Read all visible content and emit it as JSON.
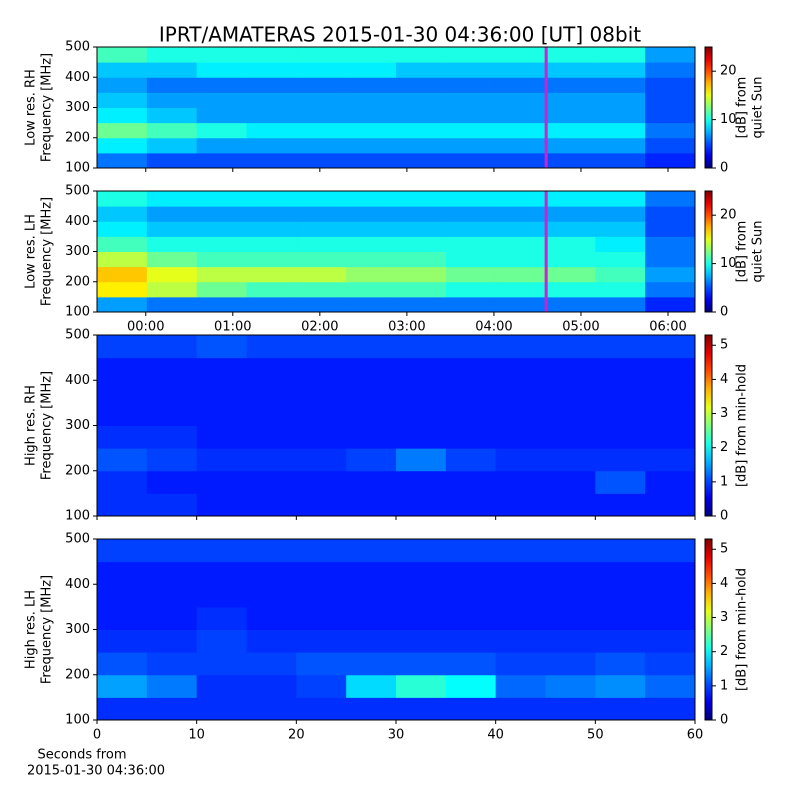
{
  "title": "IPRT/AMATERAS 2015-01-30 04:36:00 [UT]   08bit",
  "xlabel": [
    "Seconds from",
    "2015-01-30 04:36:00"
  ],
  "chart_data": [
    {
      "type": "spectrogram",
      "ylabel": [
        "Low res. RH",
        "Frequency [MHz]"
      ],
      "colorbar_label": [
        "[dB] from",
        "quiet Sun"
      ],
      "xlim": [
        -0.56,
        6.31
      ],
      "xticks": [
        {
          "value": 0,
          "label": "00:00"
        },
        {
          "value": 1,
          "label": "01:00"
        },
        {
          "value": 2,
          "label": "02:00"
        },
        {
          "value": 3,
          "label": "03:00"
        },
        {
          "value": 4,
          "label": "04:00"
        },
        {
          "value": 5,
          "label": "05:00"
        },
        {
          "value": 6,
          "label": "06:00"
        }
      ],
      "show_xticklabels": false,
      "ylim": [
        100,
        500
      ],
      "yticks": [
        100,
        200,
        300,
        400,
        500
      ],
      "clim": [
        0,
        25
      ],
      "cticks": [
        0,
        10,
        20
      ],
      "marker_x": 4.6,
      "marker_color": "#d020d0",
      "z": [
        [
          6,
          5,
          5,
          5,
          5,
          5,
          5,
          5,
          5,
          5,
          5,
          4
        ],
        [
          9,
          8,
          7,
          7,
          7,
          7,
          7,
          7,
          7,
          7,
          7,
          5
        ],
        [
          12,
          11,
          10,
          9,
          9,
          9,
          9,
          9,
          9,
          9,
          9,
          6
        ],
        [
          9,
          8,
          7,
          7,
          7,
          7,
          7,
          7,
          7,
          7,
          7,
          5
        ],
        [
          8,
          7,
          7,
          7,
          7,
          7,
          7,
          7,
          7,
          7,
          7,
          5
        ],
        [
          7,
          6,
          6,
          6,
          6,
          6,
          6,
          6,
          6,
          6,
          6,
          5
        ],
        [
          8,
          8,
          9,
          9,
          9,
          9,
          8,
          8,
          8,
          8,
          8,
          6
        ],
        [
          11,
          10,
          10,
          10,
          10,
          10,
          10,
          10,
          10,
          10,
          10,
          7
        ]
      ]
    },
    {
      "type": "spectrogram",
      "ylabel": [
        "Low res. LH",
        "Frequency [MHz]"
      ],
      "colorbar_label": [
        "[dB] from",
        "quiet Sun"
      ],
      "xlim": [
        -0.56,
        6.31
      ],
      "xticks": [
        {
          "value": 0,
          "label": "00:00"
        },
        {
          "value": 1,
          "label": "01:00"
        },
        {
          "value": 2,
          "label": "02:00"
        },
        {
          "value": 3,
          "label": "03:00"
        },
        {
          "value": 4,
          "label": "04:00"
        },
        {
          "value": 5,
          "label": "05:00"
        },
        {
          "value": 6,
          "label": "06:00"
        }
      ],
      "show_xticklabels": true,
      "ylim": [
        100,
        500
      ],
      "yticks": [
        100,
        200,
        300,
        400,
        500
      ],
      "clim": [
        0,
        25
      ],
      "cticks": [
        0,
        10,
        20
      ],
      "marker_x": 4.6,
      "marker_color": "#d020d0",
      "z": [
        [
          7,
          6,
          6,
          6,
          6,
          6,
          6,
          6,
          6,
          6,
          6,
          4
        ],
        [
          16,
          14,
          12,
          11,
          11,
          11,
          11,
          10,
          10,
          10,
          10,
          6
        ],
        [
          17,
          15,
          14,
          14,
          14,
          13,
          13,
          12,
          12,
          12,
          11,
          7
        ],
        [
          14,
          12,
          11,
          11,
          11,
          11,
          11,
          10,
          10,
          10,
          10,
          6
        ],
        [
          11,
          10,
          10,
          10,
          10,
          10,
          10,
          10,
          10,
          10,
          9,
          6
        ],
        [
          9,
          8,
          8,
          8,
          8,
          8,
          8,
          8,
          8,
          8,
          8,
          5
        ],
        [
          8,
          7,
          7,
          7,
          7,
          7,
          7,
          7,
          7,
          7,
          7,
          5
        ],
        [
          10,
          9,
          9,
          9,
          9,
          9,
          9,
          9,
          9,
          9,
          9,
          6
        ]
      ]
    },
    {
      "type": "spectrogram",
      "ylabel": [
        "High res. RH",
        "Frequency [MHz]"
      ],
      "colorbar_label": [
        "[dB] from min-hold"
      ],
      "xlim": [
        0,
        60
      ],
      "xticks": [
        0,
        10,
        20,
        30,
        40,
        50,
        60
      ],
      "show_xticklabels": false,
      "ylim": [
        100,
        500
      ],
      "yticks": [
        100,
        200,
        300,
        400,
        500
      ],
      "clim": [
        0,
        5.3
      ],
      "cticks": [
        0,
        1,
        2,
        3,
        4,
        5
      ],
      "z": [
        [
          0.9,
          0.9,
          0.8,
          0.8,
          0.8,
          0.8,
          0.8,
          0.8,
          0.8,
          0.8,
          0.8,
          0.8
        ],
        [
          0.9,
          0.8,
          0.8,
          0.8,
          0.8,
          0.8,
          0.8,
          0.8,
          0.8,
          0.8,
          1.1,
          0.8
        ],
        [
          1.1,
          1.0,
          0.9,
          0.9,
          0.9,
          1.0,
          1.3,
          1.0,
          0.9,
          0.9,
          0.9,
          0.9
        ],
        [
          0.9,
          0.9,
          0.8,
          0.8,
          0.8,
          0.8,
          0.8,
          0.8,
          0.8,
          0.8,
          0.8,
          0.8
        ],
        [
          0.8,
          0.8,
          0.8,
          0.8,
          0.8,
          0.8,
          0.8,
          0.8,
          0.8,
          0.8,
          0.8,
          0.8
        ],
        [
          0.8,
          0.8,
          0.8,
          0.8,
          0.8,
          0.8,
          0.8,
          0.8,
          0.8,
          0.8,
          0.8,
          0.8
        ],
        [
          0.8,
          0.8,
          0.8,
          0.8,
          0.8,
          0.8,
          0.8,
          0.8,
          0.8,
          0.8,
          0.8,
          0.8
        ],
        [
          1.0,
          1.0,
          1.1,
          1.0,
          1.0,
          1.0,
          1.0,
          1.0,
          1.0,
          1.0,
          1.0,
          1.0
        ]
      ]
    },
    {
      "type": "spectrogram",
      "ylabel": [
        "High res. LH",
        "Frequency [MHz]"
      ],
      "colorbar_label": [
        "[dB] from min-hold"
      ],
      "xlim": [
        0,
        60
      ],
      "xticks": [
        0,
        10,
        20,
        30,
        40,
        50,
        60
      ],
      "show_xticklabels": true,
      "ylim": [
        100,
        500
      ],
      "yticks": [
        100,
        200,
        300,
        400,
        500
      ],
      "clim": [
        0,
        5.3
      ],
      "cticks": [
        0,
        1,
        2,
        3,
        4,
        5
      ],
      "z": [
        [
          0.9,
          0.9,
          0.9,
          0.9,
          0.9,
          0.9,
          0.9,
          0.9,
          0.9,
          0.9,
          0.9,
          0.9
        ],
        [
          1.5,
          1.3,
          0.9,
          0.9,
          1.0,
          1.8,
          2.2,
          2.0,
          1.2,
          1.3,
          1.4,
          1.2
        ],
        [
          1.1,
          1.0,
          1.0,
          1.0,
          1.1,
          1.1,
          1.1,
          1.1,
          1.0,
          1.0,
          1.1,
          1.0
        ],
        [
          0.9,
          0.9,
          1.0,
          0.9,
          0.9,
          0.9,
          0.9,
          0.9,
          0.9,
          0.9,
          0.9,
          0.9
        ],
        [
          0.8,
          0.8,
          0.9,
          0.8,
          0.8,
          0.8,
          0.8,
          0.8,
          0.8,
          0.8,
          0.8,
          0.8
        ],
        [
          0.8,
          0.8,
          0.8,
          0.8,
          0.8,
          0.8,
          0.8,
          0.8,
          0.8,
          0.8,
          0.8,
          0.8
        ],
        [
          0.8,
          0.8,
          0.8,
          0.8,
          0.8,
          0.8,
          0.8,
          0.8,
          0.8,
          0.8,
          0.8,
          0.8
        ],
        [
          1.0,
          1.0,
          1.0,
          1.0,
          1.0,
          1.0,
          1.0,
          1.0,
          1.0,
          1.0,
          1.0,
          1.0
        ]
      ]
    }
  ]
}
